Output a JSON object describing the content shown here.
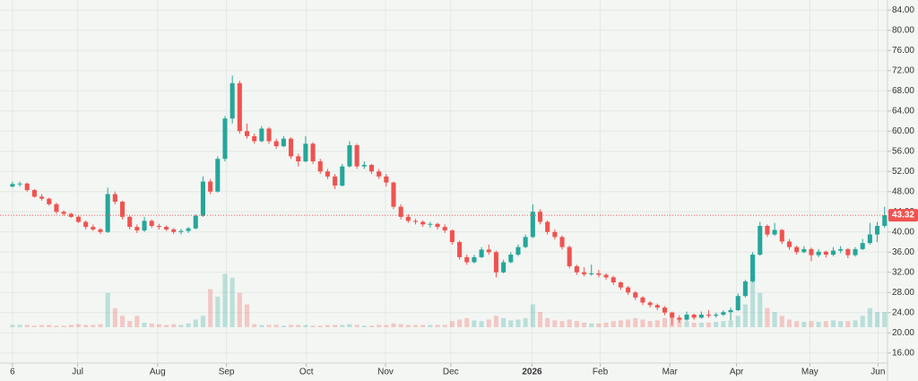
{
  "chart_data": {
    "type": "candlestick",
    "up_color": "#26a69a",
    "down_color": "#ef5350",
    "grid": true,
    "xlim": [
      -1.7,
      119.4
    ],
    "xticks": [
      {
        "value": 0,
        "label": "6"
      },
      {
        "value": 8.9,
        "label": "Jul"
      },
      {
        "value": 19.8,
        "label": "Aug"
      },
      {
        "value": 29.2,
        "label": "Sep"
      },
      {
        "value": 40.1,
        "label": "Oct"
      },
      {
        "value": 50.9,
        "label": "Nov"
      },
      {
        "value": 59.8,
        "label": "Dec"
      },
      {
        "value": 70.9,
        "label": "2026"
      },
      {
        "value": 80.2,
        "label": "Feb"
      },
      {
        "value": 89.7,
        "label": "Mar"
      },
      {
        "value": 98.8,
        "label": "Apr"
      },
      {
        "value": 108.8,
        "label": "May"
      },
      {
        "value": 118.1,
        "label": "Jun"
      }
    ],
    "ylim": [
      14,
      86
    ],
    "yticks": [
      {
        "value": 16,
        "label": "16.00"
      },
      {
        "value": 20,
        "label": "20.00"
      },
      {
        "value": 24,
        "label": "24.00"
      },
      {
        "value": 28,
        "label": "28.00"
      },
      {
        "value": 32,
        "label": "32.00"
      },
      {
        "value": 36,
        "label": "36.00"
      },
      {
        "value": 40,
        "label": "40.00"
      },
      {
        "value": 44,
        "label": "44.00"
      },
      {
        "value": 48,
        "label": "48.00"
      },
      {
        "value": 52,
        "label": "52.00"
      },
      {
        "value": 56,
        "label": "56.00"
      },
      {
        "value": 60,
        "label": "60.00"
      },
      {
        "value": 64,
        "label": "64.00"
      },
      {
        "value": 68,
        "label": "68.00"
      },
      {
        "value": 72,
        "label": "72.00"
      },
      {
        "value": 76,
        "label": "76.00"
      },
      {
        "value": 80,
        "label": "80.00"
      },
      {
        "value": 84,
        "label": "84.00"
      }
    ],
    "price_line": 43.32,
    "price_line_color": "#ef5350",
    "volume_lim": [
      0,
      100
    ],
    "ohlc": [
      [
        49,
        50,
        48.8,
        49.5
      ],
      [
        49.5,
        50,
        49,
        49.6
      ],
      [
        49.6,
        49.8,
        48,
        48.3
      ],
      [
        48.3,
        48.5,
        46.8,
        47
      ],
      [
        47,
        47.5,
        46.2,
        46.6
      ],
      [
        46.6,
        46.8,
        45.2,
        45.5
      ],
      [
        45.5,
        45.8,
        43.6,
        44
      ],
      [
        44,
        44.3,
        43.2,
        43.6
      ],
      [
        43.6,
        43.8,
        42.8,
        43
      ],
      [
        43,
        43.2,
        41.8,
        42
      ],
      [
        42,
        42.3,
        40.5,
        41
      ],
      [
        41,
        41.5,
        40.2,
        40.5
      ],
      [
        40.5,
        40.8,
        39.6,
        40
      ],
      [
        40,
        48.8,
        39.8,
        47.5
      ],
      [
        47.5,
        48,
        45.5,
        46
      ],
      [
        46,
        46.2,
        42.5,
        43
      ],
      [
        43,
        43.3,
        40.5,
        41
      ],
      [
        41,
        41.5,
        39.8,
        40.3
      ],
      [
        40.3,
        43,
        40,
        42.2
      ],
      [
        42.2,
        42.5,
        40.8,
        41.2
      ],
      [
        41.2,
        41.6,
        40.5,
        41
      ],
      [
        41,
        41.3,
        40.2,
        40.5
      ],
      [
        40.5,
        40.8,
        39.6,
        40
      ],
      [
        40,
        40.6,
        39.5,
        40.2
      ],
      [
        40.2,
        41,
        39.8,
        40.7
      ],
      [
        40.7,
        43.5,
        40.5,
        43.2
      ],
      [
        43.2,
        51,
        43,
        50
      ],
      [
        50,
        50.5,
        47.5,
        48
      ],
      [
        48,
        55,
        47.8,
        54.5
      ],
      [
        54.5,
        63,
        54,
        62.5
      ],
      [
        62.5,
        71,
        61.5,
        69.5
      ],
      [
        69.5,
        70,
        59.5,
        60
      ],
      [
        60,
        61.5,
        58.5,
        59
      ],
      [
        59,
        59.5,
        57.5,
        58
      ],
      [
        58,
        61,
        57.8,
        60.5
      ],
      [
        60.5,
        60.8,
        57.5,
        58
      ],
      [
        58,
        58.5,
        56.5,
        57
      ],
      [
        57,
        59,
        56.8,
        58.5
      ],
      [
        58.5,
        58.8,
        54.5,
        55
      ],
      [
        55,
        55.5,
        53,
        54
      ],
      [
        54,
        59,
        53.8,
        57.5
      ],
      [
        57.5,
        57.8,
        53.5,
        54
      ],
      [
        54,
        54.5,
        51.5,
        52
      ],
      [
        52,
        52.5,
        50.5,
        51
      ],
      [
        51,
        51.5,
        48.5,
        49.2
      ],
      [
        49.2,
        53.5,
        49,
        53
      ],
      [
        53,
        58,
        52.8,
        57.2
      ],
      [
        57.2,
        57.5,
        52.5,
        53
      ],
      [
        53,
        54,
        52.5,
        53.3
      ],
      [
        53.3,
        53.5,
        51.5,
        52
      ],
      [
        52,
        52.5,
        50.5,
        51
      ],
      [
        51,
        51.5,
        49,
        49.8
      ],
      [
        49.8,
        50,
        44.5,
        45
      ],
      [
        45,
        45.5,
        42.5,
        43
      ],
      [
        43,
        43.5,
        41.8,
        42.2
      ],
      [
        42.2,
        42.6,
        41.5,
        42
      ],
      [
        42,
        42.3,
        41,
        41.5
      ],
      [
        41.5,
        42,
        40.8,
        41.6
      ],
      [
        41.6,
        41.8,
        40.5,
        41
      ],
      [
        41,
        41.5,
        39.8,
        40.3
      ],
      [
        40.3,
        40.5,
        37.5,
        38
      ],
      [
        38,
        38.3,
        34.5,
        35
      ],
      [
        35,
        35.5,
        33.5,
        34
      ],
      [
        34,
        35.5,
        33.8,
        35
      ],
      [
        35,
        37,
        34.8,
        36.5
      ],
      [
        36.5,
        37.5,
        35.5,
        36
      ],
      [
        36,
        36.3,
        31,
        32
      ],
      [
        32,
        34.5,
        31.8,
        34
      ],
      [
        34,
        36,
        33.8,
        35.5
      ],
      [
        35.5,
        37.5,
        35.2,
        37
      ],
      [
        37,
        39.5,
        36.8,
        39
      ],
      [
        39,
        45.5,
        38.8,
        44
      ],
      [
        44,
        44.5,
        41.5,
        42
      ],
      [
        42,
        42.3,
        39.5,
        40
      ],
      [
        40,
        40.5,
        38.5,
        39
      ],
      [
        39,
        39.3,
        36.5,
        37
      ],
      [
        37,
        37.3,
        32.8,
        33.2
      ],
      [
        33.2,
        33.5,
        31.5,
        32
      ],
      [
        32,
        33,
        31.2,
        31.6
      ],
      [
        31.6,
        33.5,
        31.3,
        31.8
      ],
      [
        31.8,
        32.5,
        31,
        31.5
      ],
      [
        31.5,
        31.8,
        30.5,
        31
      ],
      [
        31,
        31.3,
        29.5,
        30
      ],
      [
        30,
        30.2,
        28.5,
        29
      ],
      [
        29,
        29.3,
        27.5,
        28
      ],
      [
        28,
        28.3,
        26.5,
        27
      ],
      [
        27,
        27.3,
        25.5,
        26
      ],
      [
        26,
        26.3,
        25,
        25.5
      ],
      [
        25.5,
        25.8,
        24.5,
        25
      ],
      [
        25,
        25.3,
        23.5,
        24
      ],
      [
        24,
        24.2,
        21.5,
        23
      ],
      [
        23,
        23.5,
        22,
        22.6
      ],
      [
        22.6,
        24.2,
        22.4,
        23.6
      ],
      [
        23.6,
        23.8,
        22.6,
        23
      ],
      [
        23,
        24.2,
        22.8,
        23.6
      ],
      [
        23.6,
        24.5,
        23,
        23.4
      ],
      [
        23.4,
        24,
        23,
        23.6
      ],
      [
        23.6,
        24.5,
        23.3,
        24.1
      ],
      [
        24.1,
        25,
        22.5,
        24.5
      ],
      [
        24.5,
        27.8,
        24.3,
        27.3
      ],
      [
        27.3,
        30.5,
        27,
        30.2
      ],
      [
        30.2,
        36,
        30,
        35.5
      ],
      [
        35.5,
        42,
        35.3,
        41.2
      ],
      [
        41.2,
        41.5,
        39,
        39.5
      ],
      [
        39.5,
        41.8,
        39.2,
        40.4
      ],
      [
        40.4,
        40.6,
        37.6,
        38.1
      ],
      [
        38.1,
        38.6,
        36.5,
        37
      ],
      [
        37,
        37.3,
        35.5,
        36
      ],
      [
        36,
        37.2,
        35.8,
        36.6
      ],
      [
        36.6,
        36.9,
        34.2,
        35.4
      ],
      [
        35.4,
        36.6,
        35,
        36.1
      ],
      [
        36.1,
        36.3,
        34.9,
        35.5
      ],
      [
        35.5,
        37,
        35.2,
        36.3
      ],
      [
        36.3,
        37.2,
        35.8,
        36.6
      ],
      [
        36.6,
        36.8,
        34.8,
        35.4
      ],
      [
        35.4,
        37,
        35.1,
        36.6
      ],
      [
        36.6,
        38.6,
        36.4,
        37.8
      ],
      [
        37.8,
        41.8,
        37.5,
        39.5
      ],
      [
        39.5,
        42,
        38,
        41.2
      ],
      [
        41.2,
        45,
        40.8,
        43.32
      ]
    ],
    "volume": [
      3,
      3,
      3,
      2,
      3,
      3,
      2,
      2,
      3,
      4,
      3,
      3,
      4,
      45,
      25,
      15,
      8,
      15,
      6,
      5,
      4,
      3,
      4,
      3,
      5,
      10,
      15,
      50,
      40,
      70,
      65,
      45,
      30,
      4,
      3,
      3,
      3,
      2,
      3,
      3,
      3,
      2,
      2,
      3,
      3,
      3,
      4,
      3,
      2,
      2,
      3,
      3,
      5,
      4,
      3,
      3,
      3,
      3,
      3,
      3,
      8,
      10,
      12,
      9,
      8,
      10,
      15,
      12,
      9,
      10,
      12,
      30,
      20,
      12,
      9,
      8,
      10,
      8,
      6,
      5,
      5,
      6,
      8,
      9,
      10,
      12,
      10,
      8,
      9,
      12,
      20,
      10,
      8,
      6,
      6,
      6,
      7,
      8,
      9,
      15,
      30,
      70,
      45,
      25,
      20,
      15,
      10,
      8,
      7,
      8,
      7,
      8,
      9,
      8,
      8,
      9,
      15,
      25,
      20,
      20
    ]
  }
}
